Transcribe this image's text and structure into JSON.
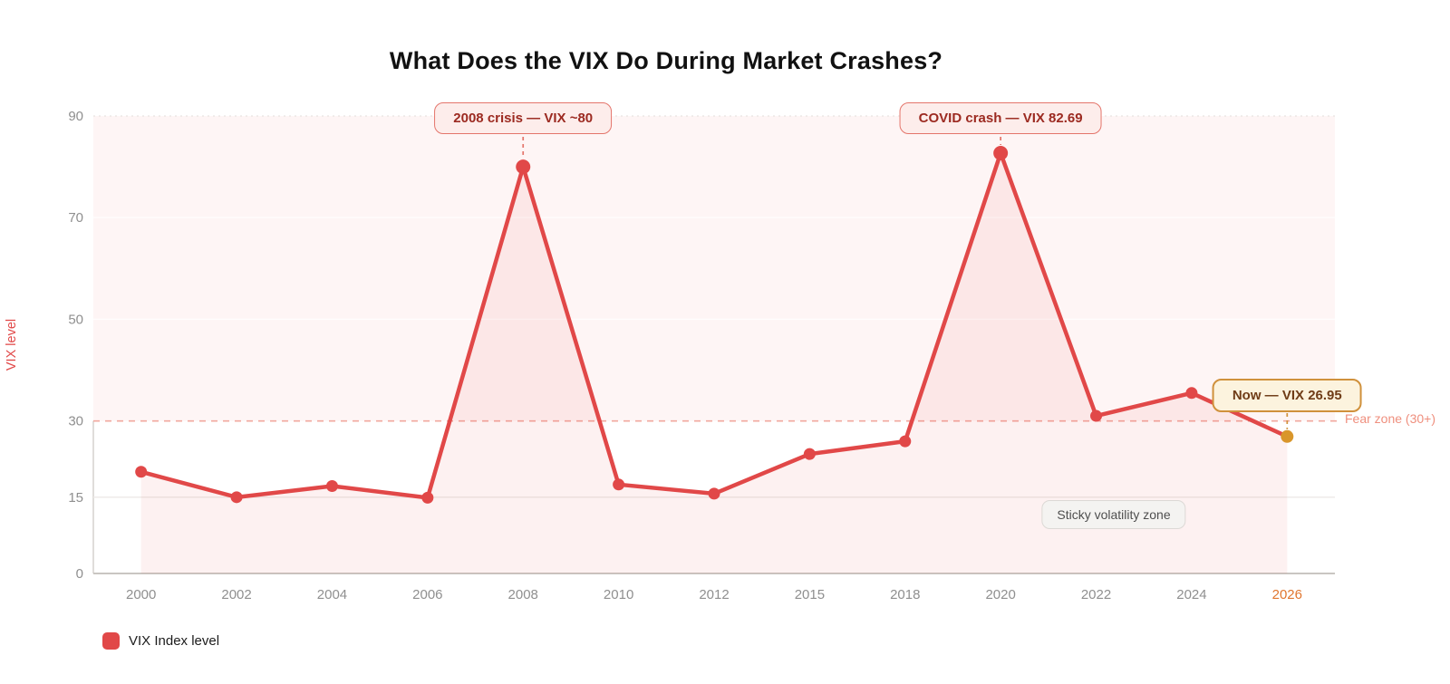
{
  "title": "What Does the VIX Do During Market Crashes?",
  "legend": {
    "label": "VIX Index level"
  },
  "labels": {
    "fear_zone": "Fear zone (30+)",
    "sticky_zone": "Sticky volatility zone"
  },
  "colors": {
    "line_red": "#e14848",
    "area_pink": "rgba(228, 77, 72, 0.08)",
    "band_pink": "rgba(228, 77, 72, 0.055)",
    "fear_line": "#f1a89f",
    "fear_label": "#ef8f7e",
    "crisis_connector": "#e4756b",
    "now_connector": "#d0913c",
    "now_dot_orange": "#d9962b",
    "tick_gray": "#8f8f8f",
    "tick_orange": "#e0762f",
    "axis_gray": "#c9c6c2",
    "grid_light": "#edeae7"
  },
  "chart_data": {
    "type": "line",
    "title": "What Does the VIX Do During Market Crashes?",
    "xlabel": "",
    "ylabel": "VIX level",
    "ylim": [
      0,
      90
    ],
    "y_ticks": [
      0,
      15,
      30,
      50,
      70,
      90
    ],
    "grid": true,
    "legend_position": "bottom-left",
    "categories": [
      "2000",
      "2002",
      "2004",
      "2006",
      "2008",
      "2010",
      "2012",
      "2015",
      "2018",
      "2020",
      "2022",
      "2024",
      "2026"
    ],
    "series": [
      {
        "name": "VIX Index level",
        "values": [
          20,
          15,
          17.2,
          14.9,
          80,
          17.5,
          15.7,
          23.5,
          26,
          82.69,
          31,
          35.5,
          26.95
        ]
      }
    ],
    "threshold_line": {
      "value": 30,
      "label": "Fear zone (30+)",
      "style": "dashed"
    },
    "fear_band_range": [
      30,
      90
    ],
    "last_point_highlight": {
      "category": "2026",
      "value": 26.95,
      "color": "#d9962b"
    },
    "annotations": [
      {
        "text": "2008 crisis — VIX ~80",
        "anchor_category": "2008",
        "anchor_value": 80,
        "kind": "crisis"
      },
      {
        "text": "COVID crash — VIX 82.69",
        "anchor_category": "2020",
        "anchor_value": 82.69,
        "kind": "crisis"
      },
      {
        "text": "Now — VIX 26.95",
        "anchor_category": "2026",
        "anchor_value": 26.95,
        "kind": "now"
      },
      {
        "text": "Sticky volatility zone",
        "kind": "badge"
      }
    ]
  }
}
